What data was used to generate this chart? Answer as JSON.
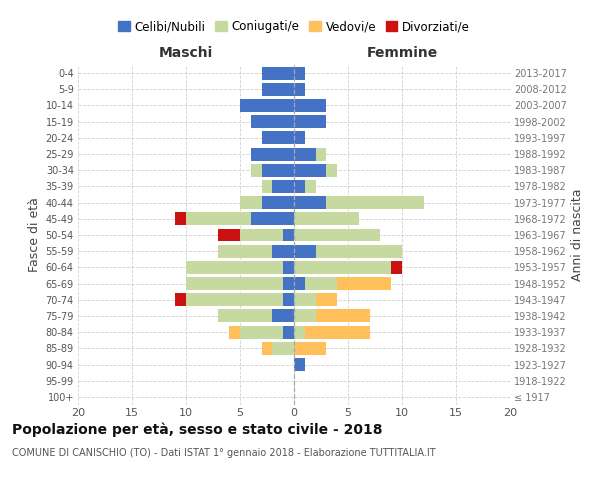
{
  "age_groups": [
    "100+",
    "95-99",
    "90-94",
    "85-89",
    "80-84",
    "75-79",
    "70-74",
    "65-69",
    "60-64",
    "55-59",
    "50-54",
    "45-49",
    "40-44",
    "35-39",
    "30-34",
    "25-29",
    "20-24",
    "15-19",
    "10-14",
    "5-9",
    "0-4"
  ],
  "birth_years": [
    "≤ 1917",
    "1918-1922",
    "1923-1927",
    "1928-1932",
    "1933-1937",
    "1938-1942",
    "1943-1947",
    "1948-1952",
    "1953-1957",
    "1958-1962",
    "1963-1967",
    "1968-1972",
    "1973-1977",
    "1978-1982",
    "1983-1987",
    "1988-1992",
    "1993-1997",
    "1998-2002",
    "2003-2007",
    "2008-2012",
    "2013-2017"
  ],
  "maschi": {
    "celibi": [
      0,
      0,
      0,
      0,
      1,
      2,
      1,
      1,
      1,
      2,
      1,
      4,
      3,
      2,
      3,
      4,
      3,
      4,
      5,
      3,
      3
    ],
    "coniugati": [
      0,
      0,
      0,
      2,
      4,
      5,
      9,
      9,
      9,
      5,
      4,
      6,
      2,
      1,
      1,
      0,
      0,
      0,
      0,
      0,
      0
    ],
    "vedovi": [
      0,
      0,
      0,
      1,
      1,
      0,
      0,
      0,
      0,
      0,
      0,
      0,
      0,
      0,
      0,
      0,
      0,
      0,
      0,
      0,
      0
    ],
    "divorziati": [
      0,
      0,
      0,
      0,
      0,
      0,
      1,
      0,
      0,
      0,
      2,
      1,
      0,
      0,
      0,
      0,
      0,
      0,
      0,
      0,
      0
    ]
  },
  "femmine": {
    "nubili": [
      0,
      0,
      1,
      0,
      0,
      0,
      0,
      1,
      0,
      2,
      0,
      0,
      3,
      1,
      3,
      2,
      1,
      3,
      3,
      1,
      1
    ],
    "coniugate": [
      0,
      0,
      0,
      0,
      1,
      2,
      2,
      3,
      9,
      8,
      8,
      6,
      9,
      1,
      1,
      1,
      0,
      0,
      0,
      0,
      0
    ],
    "vedove": [
      0,
      0,
      0,
      3,
      6,
      5,
      2,
      5,
      0,
      0,
      0,
      0,
      0,
      0,
      0,
      0,
      0,
      0,
      0,
      0,
      0
    ],
    "divorziate": [
      0,
      0,
      0,
      0,
      0,
      0,
      0,
      0,
      1,
      0,
      0,
      0,
      0,
      0,
      0,
      0,
      0,
      0,
      0,
      0,
      0
    ]
  },
  "color_celibi": "#4472c4",
  "color_coniugati": "#c5d9a0",
  "color_vedovi": "#ffc05c",
  "color_divorziati": "#cc1111",
  "xlim": 20,
  "title": "Popolazione per età, sesso e stato civile - 2018",
  "subtitle": "COMUNE DI CANISCHIO (TO) - Dati ISTAT 1° gennaio 2018 - Elaborazione TUTTITALIA.IT",
  "ylabel_left": "Fasce di età",
  "ylabel_right": "Anni di nascita",
  "xlabel_maschi": "Maschi",
  "xlabel_femmine": "Femmine",
  "legend_labels": [
    "Celibi/Nubili",
    "Coniugati/e",
    "Vedovi/e",
    "Divorziati/e"
  ],
  "background_color": "#ffffff",
  "grid_color": "#cccccc"
}
